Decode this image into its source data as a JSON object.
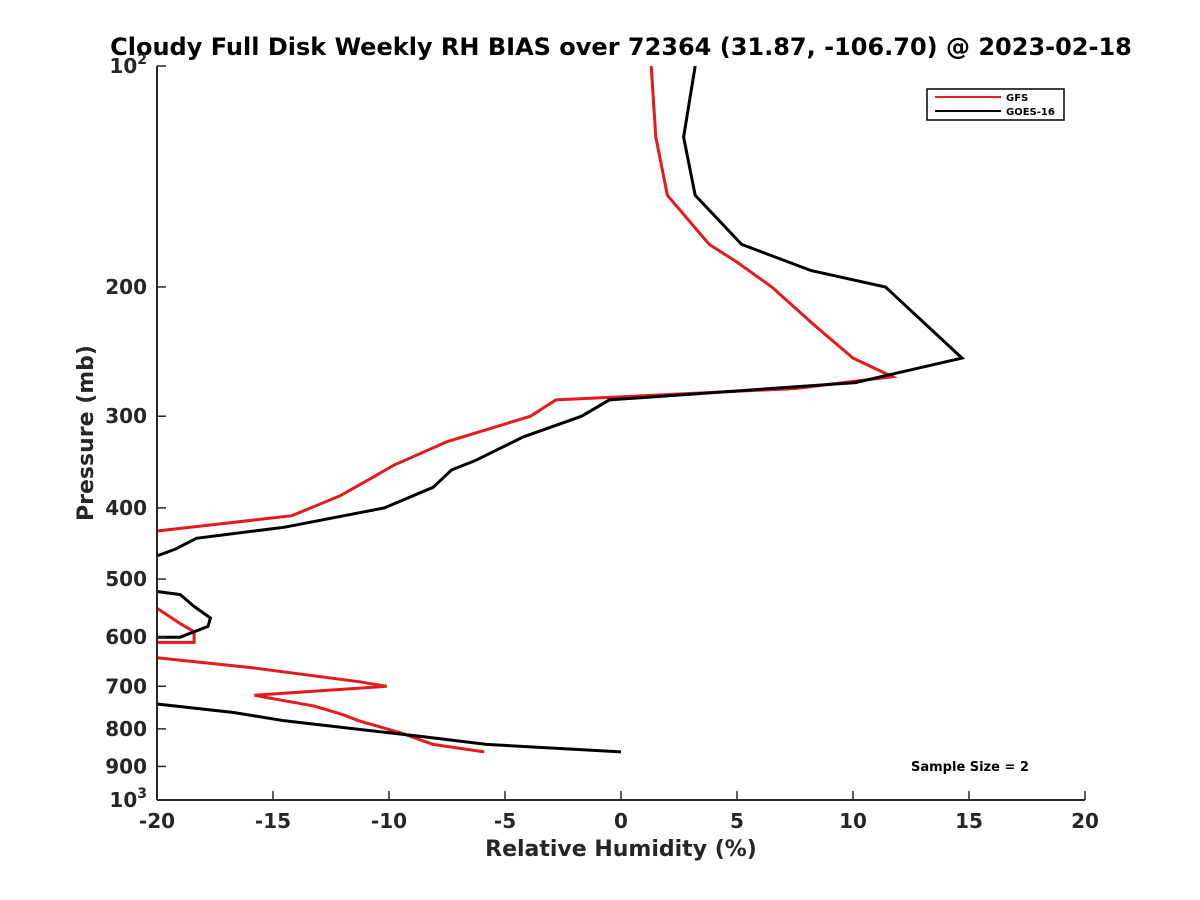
{
  "chart_data": {
    "type": "line",
    "title": "Cloudy Full Disk Weekly RH BIAS over 72364 (31.87, -106.70) @ 2023-02-18",
    "xlabel": "Relative Humidity (%)",
    "ylabel": "Pressure (mb)",
    "xlim": [
      -20,
      20
    ],
    "ylim": [
      100,
      1000
    ],
    "yscale": "log",
    "y_reversed": true,
    "x_ticks": [
      -20,
      -15,
      -10,
      -5,
      0,
      5,
      10,
      15,
      20
    ],
    "x_tick_labels": [
      "-20",
      "-15",
      "-10",
      "-5",
      "0",
      "5",
      "10",
      "15",
      "20"
    ],
    "y_ticks": [
      {
        "value": 100,
        "base": "10",
        "exp": "2"
      },
      {
        "value": 200,
        "label": "200"
      },
      {
        "value": 300,
        "label": "300"
      },
      {
        "value": 400,
        "label": "400"
      },
      {
        "value": 500,
        "label": "500"
      },
      {
        "value": 600,
        "label": "600"
      },
      {
        "value": 700,
        "label": "700"
      },
      {
        "value": 800,
        "label": "800"
      },
      {
        "value": 900,
        "label": "900"
      },
      {
        "value": 1000,
        "base": "10",
        "exp": "3"
      }
    ],
    "grid": false,
    "legend_position": "top-right",
    "annotation": "Sample Size = 2",
    "series": [
      {
        "name": "GFS",
        "color": "#e41a1c",
        "points": [
          [
            1.3,
            100
          ],
          [
            1.5,
            125
          ],
          [
            2.0,
            150
          ],
          [
            3.8,
            175
          ],
          [
            5.0,
            185
          ],
          [
            6.5,
            200
          ],
          [
            8.3,
            225
          ],
          [
            10.0,
            250
          ],
          [
            11.7,
            265
          ],
          [
            7.5,
            275
          ],
          [
            -2.8,
            285
          ],
          [
            -3.9,
            300
          ],
          [
            -7.5,
            325
          ],
          [
            -9.8,
            350
          ],
          [
            -10.8,
            365
          ],
          [
            -12.1,
            385
          ],
          [
            -14.2,
            410
          ],
          [
            -20.0,
            430
          ],
          [
            null,
            null
          ],
          [
            -20.0,
            548
          ],
          [
            -19.0,
            575
          ],
          [
            -18.4,
            590
          ],
          [
            -18.4,
            610
          ],
          [
            -20.0,
            610
          ],
          [
            null,
            null
          ],
          [
            -20.0,
            640
          ],
          [
            -16.0,
            660
          ],
          [
            -11.3,
            690
          ],
          [
            -10.1,
            700
          ],
          [
            -15.8,
            720
          ],
          [
            -13.2,
            745
          ],
          [
            -12.0,
            765
          ],
          [
            -11.3,
            780
          ],
          [
            -9.5,
            810
          ],
          [
            -8.1,
            840
          ],
          [
            -5.9,
            860
          ]
        ]
      },
      {
        "name": "GOES-16",
        "color": "#000000",
        "points": [
          [
            3.2,
            100
          ],
          [
            2.7,
            125
          ],
          [
            3.2,
            150
          ],
          [
            5.2,
            175
          ],
          [
            8.2,
            190
          ],
          [
            11.4,
            200
          ],
          [
            14.7,
            250
          ],
          [
            10.1,
            270
          ],
          [
            -0.5,
            285
          ],
          [
            -1.7,
            300
          ],
          [
            -4.2,
            320
          ],
          [
            -6.3,
            345
          ],
          [
            -7.3,
            355
          ],
          [
            -8.1,
            375
          ],
          [
            -10.2,
            400
          ],
          [
            -14.5,
            425
          ],
          [
            -18.3,
            440
          ],
          [
            -19.2,
            455
          ],
          [
            -20.0,
            465
          ],
          [
            null,
            null
          ],
          [
            -20.0,
            520
          ],
          [
            -19.0,
            525
          ],
          [
            -18.4,
            545
          ],
          [
            -17.7,
            565
          ],
          [
            -17.8,
            580
          ],
          [
            -19.0,
            600
          ],
          [
            -20.0,
            600
          ],
          [
            null,
            null
          ],
          [
            -20.0,
            740
          ],
          [
            -16.7,
            760
          ],
          [
            -14.5,
            780
          ],
          [
            -10.0,
            810
          ],
          [
            -8.5,
            820
          ],
          [
            -5.8,
            840
          ],
          [
            0.0,
            860
          ]
        ]
      }
    ]
  }
}
